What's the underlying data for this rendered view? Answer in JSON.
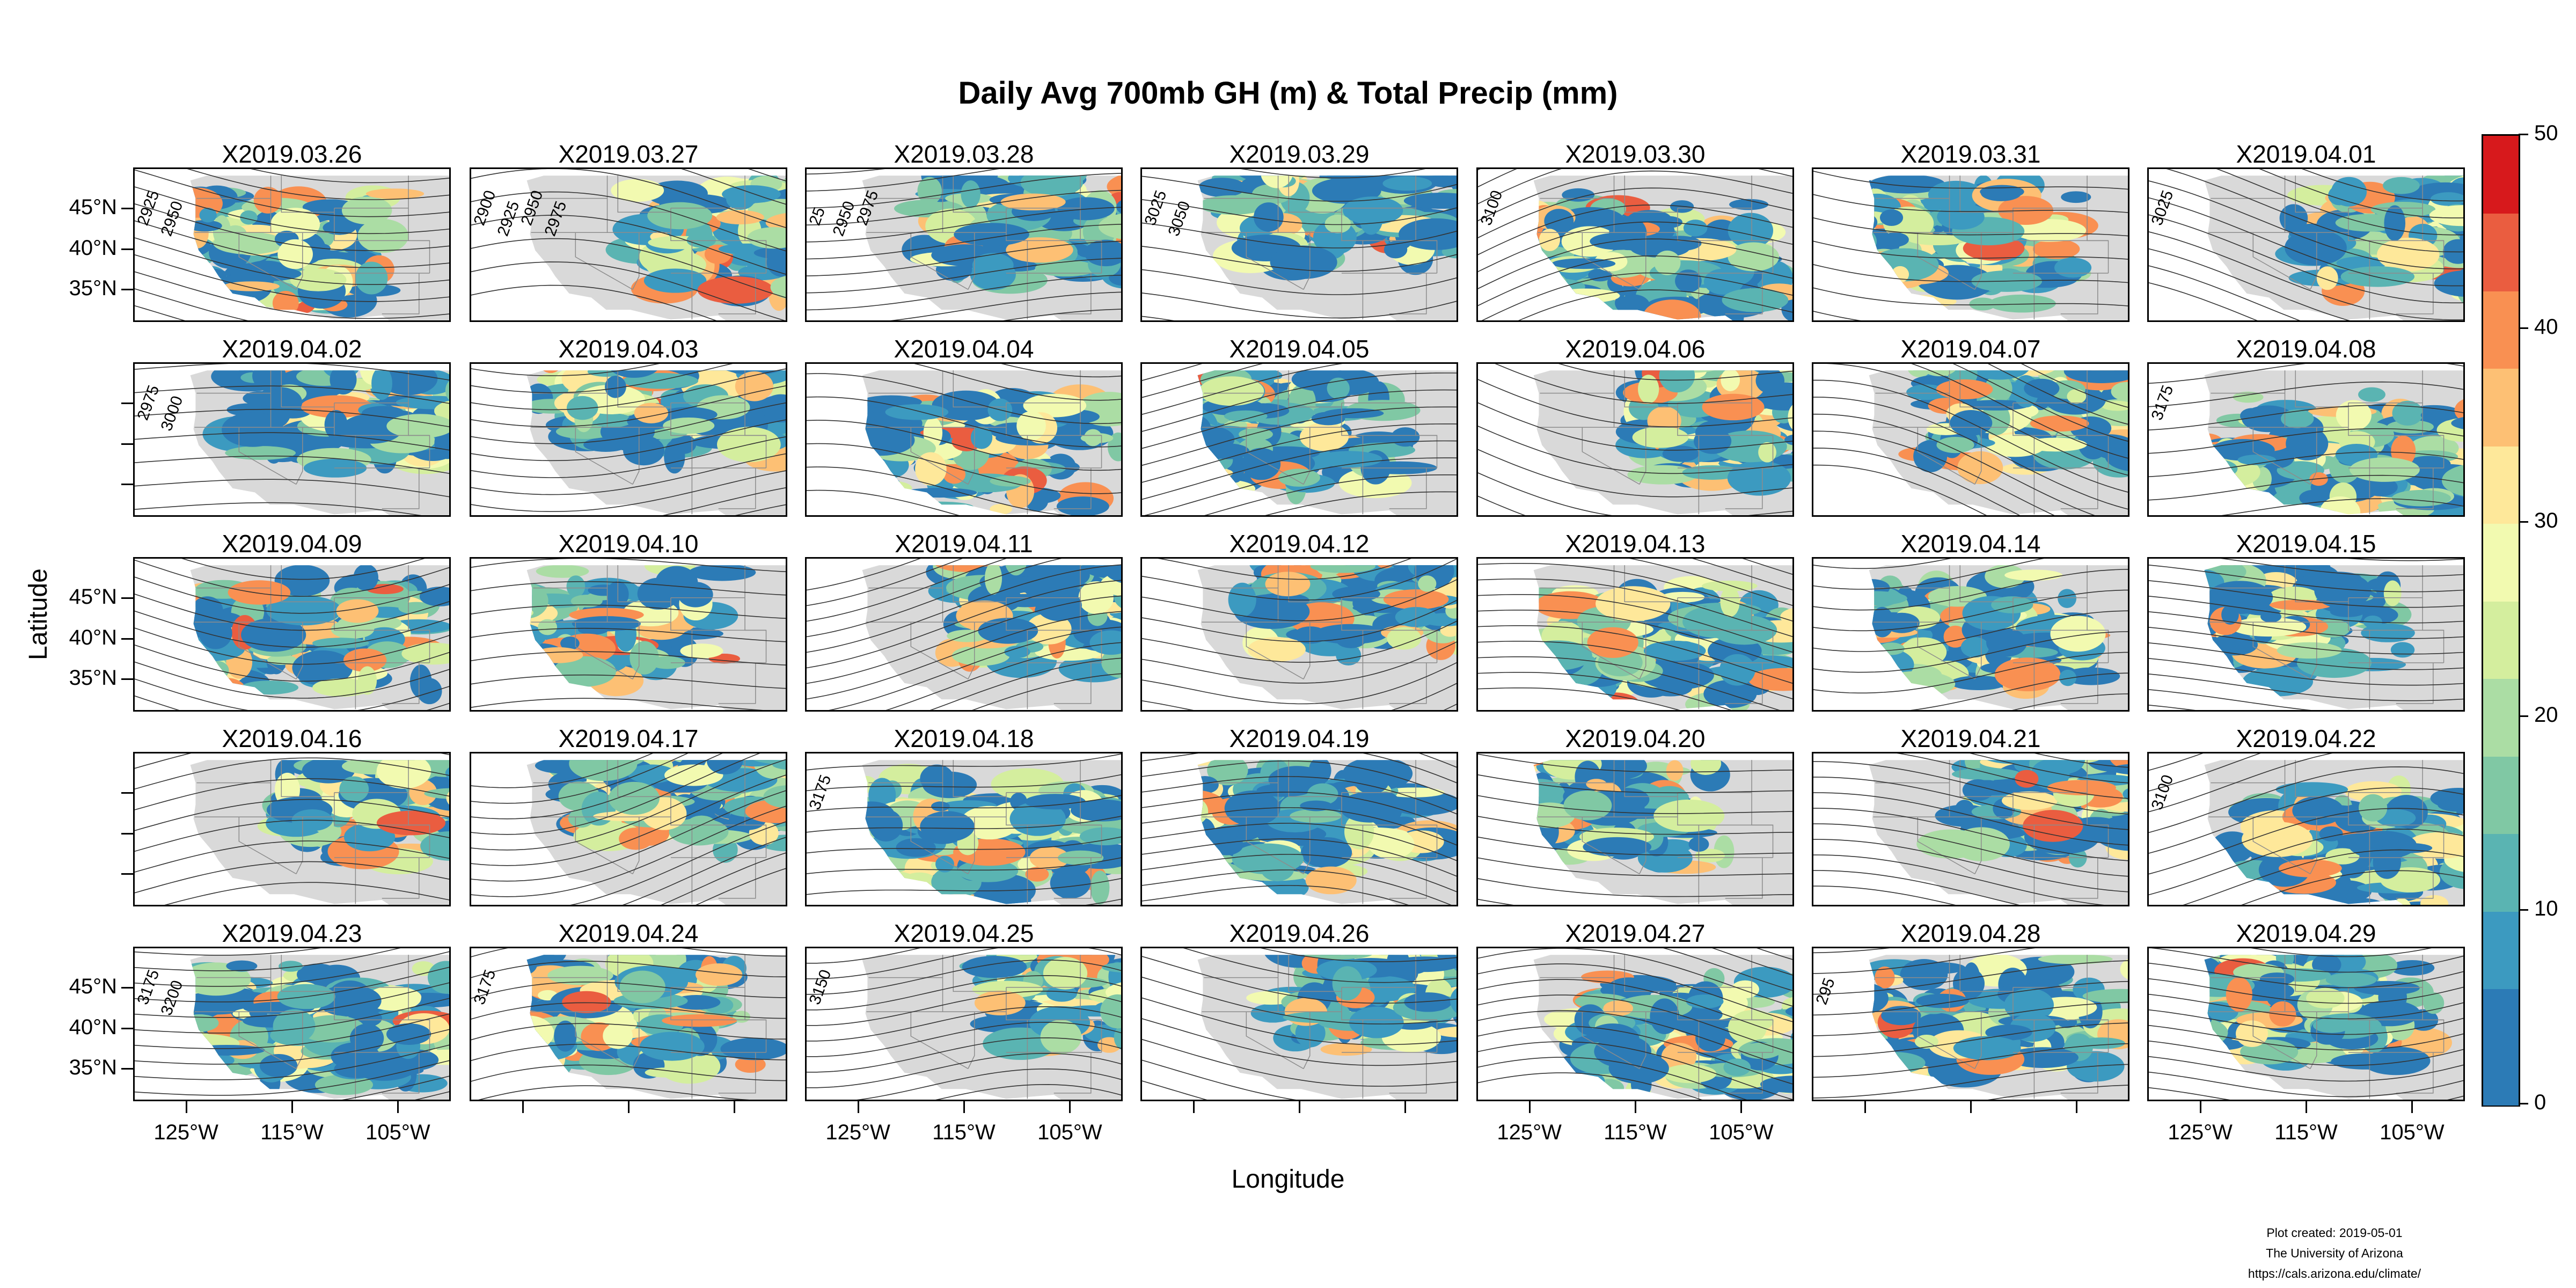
{
  "title": "Daily Avg 700mb GH (m) & Total Precip (mm)",
  "chart_data": {
    "type": "heatmap",
    "layout": {
      "rows": 5,
      "cols": 7
    },
    "panels": [
      "X2019.03.26",
      "X2019.03.27",
      "X2019.03.28",
      "X2019.03.29",
      "X2019.03.30",
      "X2019.03.31",
      "X2019.04.01",
      "X2019.04.02",
      "X2019.04.03",
      "X2019.04.04",
      "X2019.04.05",
      "X2019.04.06",
      "X2019.04.07",
      "X2019.04.08",
      "X2019.04.09",
      "X2019.04.10",
      "X2019.04.11",
      "X2019.04.12",
      "X2019.04.13",
      "X2019.04.14",
      "X2019.04.15",
      "X2019.04.16",
      "X2019.04.17",
      "X2019.04.18",
      "X2019.04.19",
      "X2019.04.20",
      "X2019.04.21",
      "X2019.04.22",
      "X2019.04.23",
      "X2019.04.24",
      "X2019.04.25",
      "X2019.04.26",
      "X2019.04.27",
      "X2019.04.28",
      "X2019.04.29"
    ],
    "xlabel": "Longitude",
    "ylabel": "Latitude",
    "xticks": [
      -125,
      -115,
      -105
    ],
    "xtick_labels": [
      "125°W",
      "115°W",
      "105°W"
    ],
    "yticks": [
      35,
      40,
      45
    ],
    "ytick_labels": [
      "35°N",
      "40°N",
      "45°N"
    ],
    "xlim": [
      -130,
      -100
    ],
    "ylim": [
      31,
      50
    ],
    "contour_labels": [
      {
        "panel": 0,
        "text": "2925"
      },
      {
        "panel": 0,
        "text": "2950"
      },
      {
        "panel": 1,
        "text": "2900"
      },
      {
        "panel": 1,
        "text": "2925"
      },
      {
        "panel": 1,
        "text": "2950"
      },
      {
        "panel": 1,
        "text": "2975"
      },
      {
        "panel": 2,
        "text": "25"
      },
      {
        "panel": 2,
        "text": "2950"
      },
      {
        "panel": 2,
        "text": "2975"
      },
      {
        "panel": 3,
        "text": "3025"
      },
      {
        "panel": 3,
        "text": "3050"
      },
      {
        "panel": 4,
        "text": "3100"
      },
      {
        "panel": 6,
        "text": "3025"
      },
      {
        "panel": 7,
        "text": "2975"
      },
      {
        "panel": 7,
        "text": "3000"
      },
      {
        "panel": 13,
        "text": "3175"
      },
      {
        "panel": 23,
        "text": "3175"
      },
      {
        "panel": 27,
        "text": "3100"
      },
      {
        "panel": 28,
        "text": "3175"
      },
      {
        "panel": 28,
        "text": "3200"
      },
      {
        "panel": 29,
        "text": "3175"
      },
      {
        "panel": 30,
        "text": "3150"
      },
      {
        "panel": 33,
        "text": "295"
      }
    ],
    "colorbar": {
      "min": 0,
      "max": 50,
      "ticks": [
        0,
        10,
        20,
        30,
        40,
        50
      ],
      "colors": [
        "#2c7bb6",
        "#3c9ac0",
        "#5ab4b2",
        "#80c8a4",
        "#abdda4",
        "#d4ee9e",
        "#f2fab0",
        "#fee89a",
        "#fdc074",
        "#f99052",
        "#ea5d40",
        "#d7191c"
      ]
    },
    "land_color": "#d9d9d9",
    "grid": false
  },
  "credits": {
    "line1": "Plot created: 2019-05-01",
    "line2": "The University of Arizona",
    "line3": "https://cals.arizona.edu/climate/"
  }
}
